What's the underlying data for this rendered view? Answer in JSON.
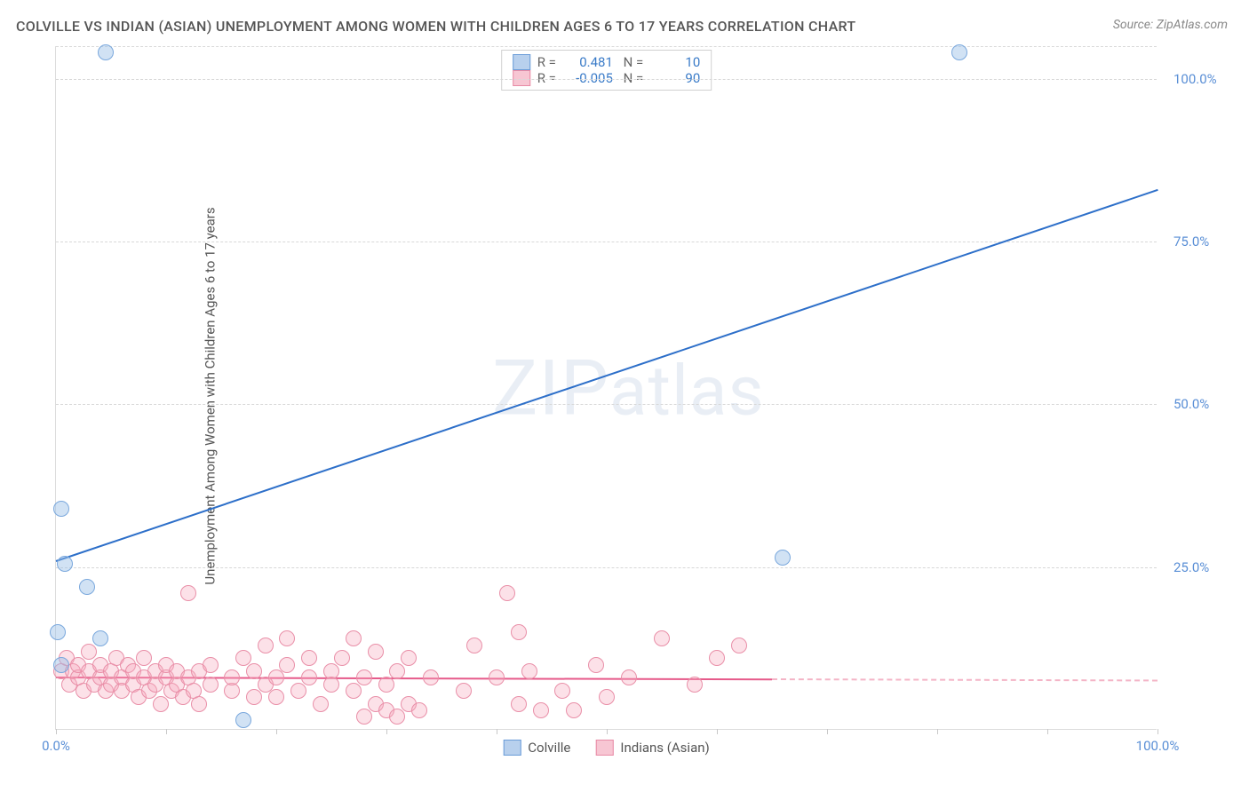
{
  "title": "COLVILLE VS INDIAN (ASIAN) UNEMPLOYMENT AMONG WOMEN WITH CHILDREN AGES 6 TO 17 YEARS CORRELATION CHART",
  "source": "Source: ZipAtlas.com",
  "ylabel": "Unemployment Among Women with Children Ages 6 to 17 years",
  "watermark": "ZIPatlas",
  "chart": {
    "type": "scatter-correlation",
    "xlim": [
      0,
      100
    ],
    "ylim": [
      0,
      105
    ],
    "yticks": [
      {
        "v": 25,
        "label": "25.0%"
      },
      {
        "v": 50,
        "label": "50.0%"
      },
      {
        "v": 75,
        "label": "75.0%"
      },
      {
        "v": 100,
        "label": "100.0%"
      }
    ],
    "xticks": [
      {
        "v": 0,
        "label": "0.0%"
      },
      {
        "v": 100,
        "label": "100.0%"
      }
    ],
    "xmarks": [
      0,
      10,
      20,
      30,
      40,
      50,
      60,
      70,
      80,
      90,
      100
    ],
    "background_color": "#ffffff",
    "grid_color": "#d8d8d8",
    "series": [
      {
        "name": "Colville",
        "color_fill": "rgba(154,190,231,0.45)",
        "color_stroke": "#7aa8dd",
        "marker_size": 18,
        "R": "0.481",
        "N": "10",
        "trend": {
          "x1": 0,
          "y1": 26,
          "x2": 100,
          "y2": 83,
          "color": "#2d6fc9",
          "width": 2,
          "dash": false
        },
        "points": [
          {
            "x": 4.5,
            "y": 104
          },
          {
            "x": 82,
            "y": 104
          },
          {
            "x": 0.5,
            "y": 34
          },
          {
            "x": 0.8,
            "y": 25.5
          },
          {
            "x": 2.8,
            "y": 22
          },
          {
            "x": 0.2,
            "y": 15
          },
          {
            "x": 4,
            "y": 14
          },
          {
            "x": 66,
            "y": 26.5
          },
          {
            "x": 0.5,
            "y": 10
          },
          {
            "x": 17,
            "y": 1.5
          }
        ]
      },
      {
        "name": "Indians (Asian)",
        "color_fill": "rgba(245,168,188,0.35)",
        "color_stroke": "#e98fa8",
        "marker_size": 18,
        "R": "-0.005",
        "N": "90",
        "trend": {
          "x1": 0,
          "y1": 8.2,
          "x2": 65,
          "y2": 7.9,
          "color": "#e65a8a",
          "width": 2,
          "dash": false
        },
        "trend_ext": {
          "x1": 65,
          "y1": 7.9,
          "x2": 100,
          "y2": 7.7,
          "color": "#f4b4c6",
          "width": 2,
          "dash": true
        },
        "points": [
          {
            "x": 0.5,
            "y": 9
          },
          {
            "x": 1,
            "y": 11
          },
          {
            "x": 1.2,
            "y": 7
          },
          {
            "x": 1.5,
            "y": 9
          },
          {
            "x": 2,
            "y": 8
          },
          {
            "x": 2,
            "y": 10
          },
          {
            "x": 2.5,
            "y": 6
          },
          {
            "x": 3,
            "y": 9
          },
          {
            "x": 3,
            "y": 12
          },
          {
            "x": 3.5,
            "y": 7
          },
          {
            "x": 4,
            "y": 8
          },
          {
            "x": 4,
            "y": 10
          },
          {
            "x": 4.5,
            "y": 6
          },
          {
            "x": 5,
            "y": 9
          },
          {
            "x": 5,
            "y": 7
          },
          {
            "x": 5.5,
            "y": 11
          },
          {
            "x": 6,
            "y": 8
          },
          {
            "x": 6,
            "y": 6
          },
          {
            "x": 6.5,
            "y": 10
          },
          {
            "x": 7,
            "y": 7
          },
          {
            "x": 7,
            "y": 9
          },
          {
            "x": 7.5,
            "y": 5
          },
          {
            "x": 8,
            "y": 8
          },
          {
            "x": 8,
            "y": 11
          },
          {
            "x": 8.5,
            "y": 6
          },
          {
            "x": 9,
            "y": 9
          },
          {
            "x": 9,
            "y": 7
          },
          {
            "x": 9.5,
            "y": 4
          },
          {
            "x": 10,
            "y": 8
          },
          {
            "x": 10,
            "y": 10
          },
          {
            "x": 10.5,
            "y": 6
          },
          {
            "x": 11,
            "y": 7
          },
          {
            "x": 11,
            "y": 9
          },
          {
            "x": 11.5,
            "y": 5
          },
          {
            "x": 12,
            "y": 21
          },
          {
            "x": 12,
            "y": 8
          },
          {
            "x": 12.5,
            "y": 6
          },
          {
            "x": 13,
            "y": 9
          },
          {
            "x": 13,
            "y": 4
          },
          {
            "x": 14,
            "y": 7
          },
          {
            "x": 14,
            "y": 10
          },
          {
            "x": 16,
            "y": 6
          },
          {
            "x": 16,
            "y": 8
          },
          {
            "x": 17,
            "y": 11
          },
          {
            "x": 18,
            "y": 5
          },
          {
            "x": 18,
            "y": 9
          },
          {
            "x": 19,
            "y": 13
          },
          {
            "x": 19,
            "y": 7
          },
          {
            "x": 20,
            "y": 8
          },
          {
            "x": 20,
            "y": 5
          },
          {
            "x": 21,
            "y": 10
          },
          {
            "x": 21,
            "y": 14
          },
          {
            "x": 22,
            "y": 6
          },
          {
            "x": 23,
            "y": 8
          },
          {
            "x": 23,
            "y": 11
          },
          {
            "x": 24,
            "y": 4
          },
          {
            "x": 25,
            "y": 9
          },
          {
            "x": 25,
            "y": 7
          },
          {
            "x": 26,
            "y": 11
          },
          {
            "x": 27,
            "y": 14
          },
          {
            "x": 27,
            "y": 6
          },
          {
            "x": 28,
            "y": 2
          },
          {
            "x": 28,
            "y": 8
          },
          {
            "x": 29,
            "y": 4
          },
          {
            "x": 29,
            "y": 12
          },
          {
            "x": 30,
            "y": 3
          },
          {
            "x": 30,
            "y": 7
          },
          {
            "x": 31,
            "y": 2
          },
          {
            "x": 31,
            "y": 9
          },
          {
            "x": 32,
            "y": 4
          },
          {
            "x": 32,
            "y": 11
          },
          {
            "x": 33,
            "y": 3
          },
          {
            "x": 34,
            "y": 8
          },
          {
            "x": 37,
            "y": 6
          },
          {
            "x": 38,
            "y": 13
          },
          {
            "x": 40,
            "y": 8
          },
          {
            "x": 41,
            "y": 21
          },
          {
            "x": 42,
            "y": 15
          },
          {
            "x": 42,
            "y": 4
          },
          {
            "x": 43,
            "y": 9
          },
          {
            "x": 44,
            "y": 3
          },
          {
            "x": 46,
            "y": 6
          },
          {
            "x": 47,
            "y": 3
          },
          {
            "x": 49,
            "y": 10
          },
          {
            "x": 50,
            "y": 5
          },
          {
            "x": 52,
            "y": 8
          },
          {
            "x": 55,
            "y": 14
          },
          {
            "x": 58,
            "y": 7
          },
          {
            "x": 60,
            "y": 11
          },
          {
            "x": 62,
            "y": 13
          }
        ]
      }
    ],
    "legend_bottom": [
      {
        "swatch": "blue",
        "label": "Colville"
      },
      {
        "swatch": "pink",
        "label": "Indians (Asian)"
      }
    ]
  }
}
